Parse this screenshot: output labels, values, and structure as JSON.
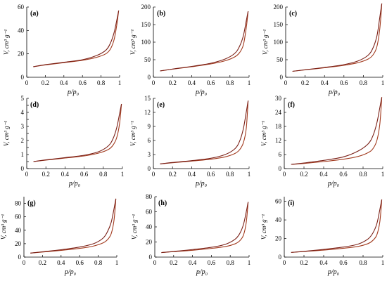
{
  "figure": {
    "ylabel": "V, cm³ g⁻¹",
    "xlabel": "p/p₀",
    "colors": {
      "adsorption": "#a23a1e",
      "desorption": "#7a1f16",
      "axis": "#000000"
    }
  },
  "chart_data": [
    {
      "type": "line",
      "panel_label": "(a)",
      "xlim": [
        0,
        1
      ],
      "ylim": [
        0,
        60
      ],
      "xticks": [
        0,
        0.2,
        0.4,
        0.6,
        0.8,
        1
      ],
      "xticklabels": [
        "0",
        "0.2",
        "0.4",
        "0.6",
        "0.8",
        "1"
      ],
      "yticks": [
        0,
        20,
        40,
        60
      ],
      "yticklabels": [
        "0",
        "20",
        "40",
        "60"
      ],
      "series": [
        {
          "x": [
            0.07,
            0.2,
            0.4,
            0.6,
            0.75,
            0.85,
            0.9,
            0.94,
            0.97,
            0.99
          ],
          "y": [
            9,
            10.5,
            12.5,
            14.5,
            17,
            20,
            24,
            32,
            45,
            57
          ]
        },
        {
          "x": [
            0.99,
            0.97,
            0.94,
            0.9,
            0.85,
            0.75,
            0.6,
            0.4,
            0.2,
            0.07
          ],
          "y": [
            57,
            49,
            38,
            29,
            23,
            18.5,
            15,
            12.8,
            10.8,
            9
          ]
        }
      ]
    },
    {
      "type": "line",
      "panel_label": "(b)",
      "xlim": [
        0,
        1
      ],
      "ylim": [
        0,
        200
      ],
      "xticks": [
        0,
        0.2,
        0.4,
        0.6,
        0.8,
        1
      ],
      "xticklabels": [
        "0",
        "0.2",
        "0.4",
        "0.6",
        "0.8",
        "1"
      ],
      "yticks": [
        0,
        50,
        100,
        150,
        200
      ],
      "yticklabels": [
        "0",
        "50",
        "100",
        "150",
        "200"
      ],
      "series": [
        {
          "x": [
            0.07,
            0.2,
            0.4,
            0.6,
            0.75,
            0.85,
            0.9,
            0.94,
            0.97,
            0.99
          ],
          "y": [
            18,
            23,
            30,
            38,
            47,
            58,
            70,
            92,
            140,
            188
          ]
        },
        {
          "x": [
            0.99,
            0.97,
            0.94,
            0.9,
            0.85,
            0.75,
            0.6,
            0.4,
            0.2,
            0.07
          ],
          "y": [
            188,
            160,
            118,
            88,
            68,
            52,
            40,
            31,
            23.5,
            18
          ]
        }
      ]
    },
    {
      "type": "line",
      "panel_label": "(c)",
      "xlim": [
        0,
        1
      ],
      "ylim": [
        0,
        200
      ],
      "xticks": [
        0,
        0.2,
        0.4,
        0.6,
        0.8,
        1
      ],
      "xticklabels": [
        "0",
        "0.2",
        "0.4",
        "0.6",
        "0.8",
        "1"
      ],
      "yticks": [
        0,
        50,
        100,
        150,
        200
      ],
      "yticklabels": [
        "0",
        "50",
        "100",
        "150",
        "200"
      ],
      "series": [
        {
          "x": [
            0.07,
            0.2,
            0.4,
            0.6,
            0.75,
            0.85,
            0.9,
            0.94,
            0.97,
            0.99
          ],
          "y": [
            17,
            21,
            27,
            34,
            42,
            52,
            64,
            88,
            140,
            210
          ]
        },
        {
          "x": [
            0.99,
            0.97,
            0.94,
            0.9,
            0.85,
            0.75,
            0.6,
            0.4,
            0.2,
            0.07
          ],
          "y": [
            210,
            172,
            118,
            84,
            63,
            47,
            36,
            28,
            21.5,
            17
          ]
        }
      ]
    },
    {
      "type": "line",
      "panel_label": "(d)",
      "xlim": [
        0,
        1
      ],
      "ylim": [
        0,
        5
      ],
      "xticks": [
        0,
        0.2,
        0.4,
        0.6,
        0.8,
        1
      ],
      "xticklabels": [
        "0",
        "0.2",
        "0.4",
        "0.6",
        "0.8",
        "1"
      ],
      "yticks": [
        0,
        0.5,
        1,
        1.5,
        2,
        2.5,
        3,
        3.5,
        4,
        4.5,
        5
      ],
      "yticklabels": [
        "0",
        "",
        "1",
        "",
        "2",
        "",
        "3",
        "",
        "4",
        "",
        "5"
      ],
      "series": [
        {
          "x": [
            0.07,
            0.2,
            0.4,
            0.6,
            0.75,
            0.85,
            0.9,
            0.94,
            0.97,
            0.99
          ],
          "y": [
            0.5,
            0.6,
            0.75,
            0.9,
            1.1,
            1.35,
            1.65,
            2.2,
            3.2,
            4.6
          ]
        },
        {
          "x": [
            0.99,
            0.97,
            0.94,
            0.9,
            0.85,
            0.75,
            0.6,
            0.4,
            0.2,
            0.07
          ],
          "y": [
            4.6,
            3.9,
            2.9,
            2.1,
            1.6,
            1.2,
            0.95,
            0.78,
            0.62,
            0.5
          ]
        }
      ]
    },
    {
      "type": "line",
      "panel_label": "(e)",
      "xlim": [
        0,
        1
      ],
      "ylim": [
        0,
        15
      ],
      "xticks": [
        0,
        0.2,
        0.4,
        0.6,
        0.8,
        1
      ],
      "xticklabels": [
        "0",
        "0.2",
        "0.4",
        "0.6",
        "0.8",
        "1"
      ],
      "yticks": [
        0,
        3,
        6,
        9,
        12,
        15
      ],
      "yticklabels": [
        "0",
        "3",
        "6",
        "9",
        "12",
        "15"
      ],
      "series": [
        {
          "x": [
            0.07,
            0.2,
            0.4,
            0.6,
            0.75,
            0.85,
            0.9,
            0.94,
            0.97,
            0.99
          ],
          "y": [
            1,
            1.25,
            1.6,
            2,
            2.5,
            3.2,
            4,
            5.5,
            8.5,
            14.5
          ]
        },
        {
          "x": [
            0.99,
            0.97,
            0.94,
            0.9,
            0.85,
            0.75,
            0.6,
            0.4,
            0.2,
            0.07
          ],
          "y": [
            14.5,
            12,
            8.5,
            5.8,
            4.2,
            3,
            2.2,
            1.7,
            1.3,
            1
          ]
        }
      ]
    },
    {
      "type": "line",
      "panel_label": "(f)",
      "xlim": [
        0,
        1
      ],
      "ylim": [
        0,
        30
      ],
      "xticks": [
        0,
        0.2,
        0.4,
        0.6,
        0.8,
        1
      ],
      "xticklabels": [
        "0",
        "0.2",
        "0.4",
        "0.6",
        "0.8",
        "1"
      ],
      "yticks": [
        0,
        6,
        12,
        18,
        24,
        30
      ],
      "yticklabels": [
        "0",
        "6",
        "12",
        "18",
        "24",
        "30"
      ],
      "series": [
        {
          "x": [
            0.07,
            0.2,
            0.4,
            0.6,
            0.75,
            0.85,
            0.9,
            0.94,
            0.97,
            0.99
          ],
          "y": [
            1.8,
            2.2,
            3,
            4,
            5.2,
            6.8,
            8.5,
            12,
            19,
            30.5
          ]
        },
        {
          "x": [
            0.99,
            0.97,
            0.94,
            0.9,
            0.85,
            0.75,
            0.6,
            0.4,
            0.2,
            0.07
          ],
          "y": [
            30.5,
            26,
            19.5,
            14,
            10.5,
            7.5,
            5,
            3.5,
            2.4,
            1.8
          ]
        }
      ]
    },
    {
      "type": "line",
      "panel_label": "(g)",
      "xlim": [
        0,
        1
      ],
      "ylim": [
        0,
        90
      ],
      "xticks": [
        0,
        0.2,
        0.4,
        0.6,
        0.8,
        1
      ],
      "xticklabels": [
        "0",
        "0.2",
        "0.4",
        "0.6",
        "0.8",
        "1"
      ],
      "yticks": [
        0,
        20,
        40,
        60,
        80
      ],
      "yticklabels": [
        "0",
        "20",
        "40",
        "60",
        "80"
      ],
      "series": [
        {
          "x": [
            0.07,
            0.2,
            0.4,
            0.6,
            0.75,
            0.85,
            0.9,
            0.94,
            0.97,
            0.99
          ],
          "y": [
            6,
            7.5,
            10,
            13,
            16.5,
            21,
            26,
            35,
            55,
            87
          ]
        },
        {
          "x": [
            0.99,
            0.97,
            0.94,
            0.9,
            0.85,
            0.75,
            0.6,
            0.4,
            0.2,
            0.07
          ],
          "y": [
            87,
            72,
            52,
            38,
            28,
            20,
            15,
            11,
            8,
            6
          ]
        }
      ]
    },
    {
      "type": "line",
      "panel_label": "(h)",
      "xlim": [
        0,
        1
      ],
      "ylim": [
        0,
        80
      ],
      "xticks": [
        0,
        0.2,
        0.4,
        0.6,
        0.8,
        1
      ],
      "xticklabels": [
        "0",
        "0.2",
        "0.4",
        "0.6",
        "0.8",
        "1"
      ],
      "yticks": [
        0,
        20,
        40,
        60,
        80
      ],
      "yticklabels": [
        "0",
        "20",
        "40",
        "60",
        "80"
      ],
      "series": [
        {
          "x": [
            0.07,
            0.2,
            0.4,
            0.6,
            0.75,
            0.85,
            0.9,
            0.94,
            0.97,
            0.99
          ],
          "y": [
            6,
            7.2,
            9,
            11.5,
            14,
            17.5,
            21.5,
            29,
            46,
            73
          ]
        },
        {
          "x": [
            0.99,
            0.97,
            0.94,
            0.9,
            0.85,
            0.75,
            0.6,
            0.4,
            0.2,
            0.07
          ],
          "y": [
            73,
            60,
            43,
            31,
            23.5,
            17,
            13,
            10,
            7.5,
            6
          ]
        }
      ]
    },
    {
      "type": "line",
      "panel_label": "(i)",
      "xlim": [
        0,
        1
      ],
      "ylim": [
        0,
        65
      ],
      "xticks": [
        0,
        0.2,
        0.4,
        0.6,
        0.8,
        1
      ],
      "xticklabels": [
        "0",
        "0.2",
        "0.4",
        "0.6",
        "0.8",
        "1"
      ],
      "yticks": [
        0,
        20,
        40,
        60
      ],
      "yticklabels": [
        "0",
        "20",
        "40",
        "60"
      ],
      "series": [
        {
          "x": [
            0.07,
            0.2,
            0.4,
            0.6,
            0.75,
            0.85,
            0.9,
            0.94,
            0.97,
            0.99
          ],
          "y": [
            5,
            6,
            7.5,
            9.5,
            11.5,
            14.5,
            18,
            24,
            38,
            62
          ]
        },
        {
          "x": [
            0.99,
            0.97,
            0.94,
            0.9,
            0.85,
            0.75,
            0.6,
            0.4,
            0.2,
            0.07
          ],
          "y": [
            62,
            51,
            36,
            26,
            19.5,
            14,
            10.8,
            8.3,
            6.2,
            5
          ]
        }
      ]
    }
  ]
}
